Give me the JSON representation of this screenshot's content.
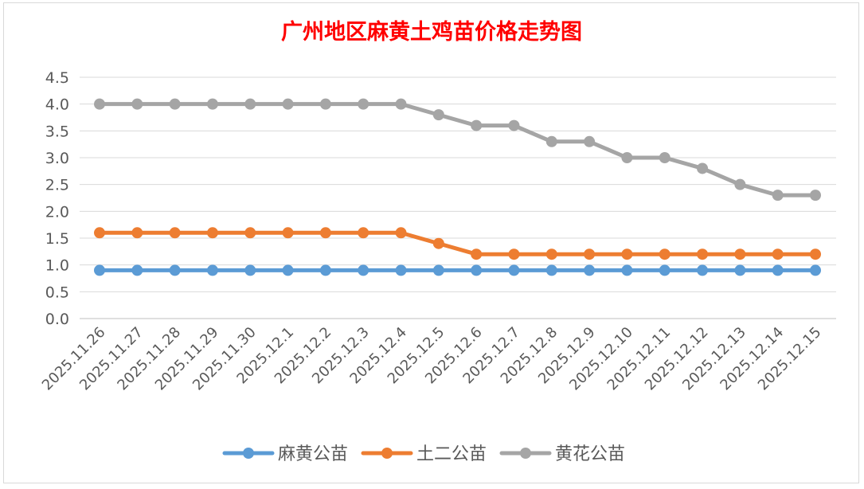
{
  "chart_data": {
    "type": "line",
    "title": "广州地区麻黄土鸡苗价格走势图",
    "xlabel": "",
    "ylabel": "",
    "ylim": [
      0,
      4.5
    ],
    "ytick_step": 0.5,
    "ytick_labels": [
      "0.0",
      "0.5",
      "1.0",
      "1.5",
      "2.0",
      "2.5",
      "3.0",
      "3.5",
      "4.0",
      "4.5"
    ],
    "grid": true,
    "legend_position": "bottom",
    "categories": [
      "2025.11.26",
      "2025.11.27",
      "2025.11.28",
      "2025.11.29",
      "2025.11.30",
      "2025.12.1",
      "2025.12.2",
      "2025.12.3",
      "2025.12.4",
      "2025.12.5",
      "2025.12.6",
      "2025.12.7",
      "2025.12.8",
      "2025.12.9",
      "2025.12.10",
      "2025.12.11",
      "2025.12.12",
      "2025.12.13",
      "2025.12.14",
      "2025.12.15"
    ],
    "series": [
      {
        "name": "麻黄公苗",
        "color": "#5b9bd5",
        "values": [
          0.9,
          0.9,
          0.9,
          0.9,
          0.9,
          0.9,
          0.9,
          0.9,
          0.9,
          0.9,
          0.9,
          0.9,
          0.9,
          0.9,
          0.9,
          0.9,
          0.9,
          0.9,
          0.9,
          0.9
        ]
      },
      {
        "name": "土二公苗",
        "color": "#ed7d31",
        "values": [
          1.6,
          1.6,
          1.6,
          1.6,
          1.6,
          1.6,
          1.6,
          1.6,
          1.6,
          1.4,
          1.2,
          1.2,
          1.2,
          1.2,
          1.2,
          1.2,
          1.2,
          1.2,
          1.2,
          1.2
        ]
      },
      {
        "name": "黄花公苗",
        "color": "#a5a5a5",
        "values": [
          4.0,
          4.0,
          4.0,
          4.0,
          4.0,
          4.0,
          4.0,
          4.0,
          4.0,
          3.8,
          3.6,
          3.6,
          3.3,
          3.3,
          3.0,
          3.0,
          2.8,
          2.5,
          2.3,
          2.3
        ]
      }
    ]
  }
}
